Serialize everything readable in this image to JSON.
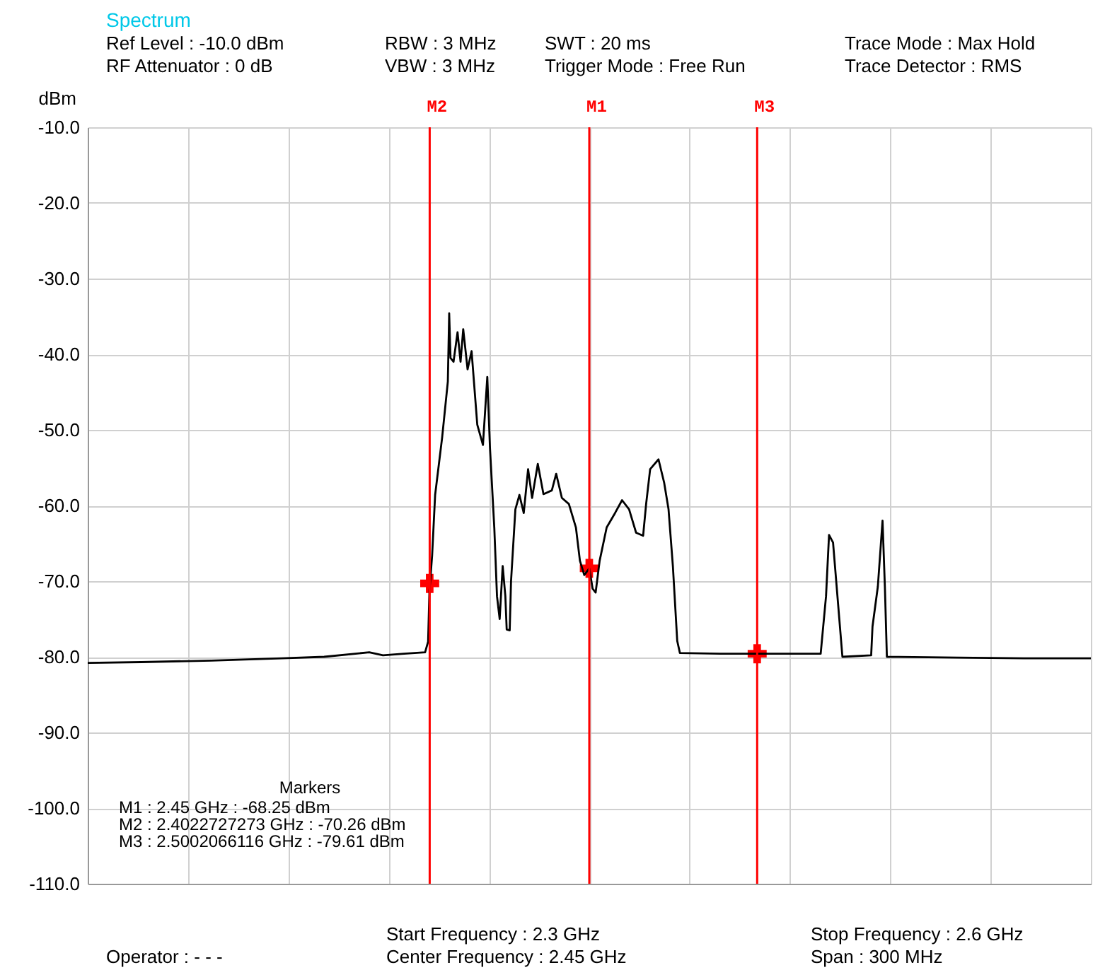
{
  "chart_data": {
    "type": "line",
    "title": "Spectrum",
    "ylabel": "dBm",
    "x": [
      2.3,
      2.316,
      2.337,
      2.3581,
      2.3707,
      2.3842,
      2.3883,
      2.3946,
      2.4009,
      2.4018,
      2.4022,
      2.403,
      2.4039,
      2.406,
      2.4077,
      2.4081,
      2.4085,
      2.4094,
      2.4106,
      2.4115,
      2.4123,
      2.4136,
      2.4148,
      2.4165,
      2.4182,
      2.4195,
      2.4203,
      2.4216,
      2.4224,
      2.4232,
      2.4241,
      2.4249,
      2.4253,
      2.4262,
      2.4266,
      2.4279,
      2.4291,
      2.4304,
      2.4317,
      2.4329,
      2.4346,
      2.4363,
      2.4388,
      2.4401,
      2.4418,
      2.4439,
      2.446,
      2.4472,
      2.4485,
      2.45,
      2.451,
      2.4519,
      2.4531,
      2.4552,
      2.4577,
      2.4598,
      2.4619,
      2.464,
      2.4661,
      2.467,
      2.4682,
      2.4707,
      2.4724,
      2.4737,
      2.475,
      2.4763,
      2.4771,
      2.49,
      2.5002,
      2.515,
      2.5192,
      2.5208,
      2.5217,
      2.5229,
      2.5257,
      2.5343,
      2.5347,
      2.5363,
      2.5377,
      2.5384,
      2.539,
      2.56,
      2.58,
      2.6
    ],
    "series": [
      {
        "color": "#000000",
        "values": [
          -80.8,
          -80.7,
          -80.5,
          -80.2,
          -80.0,
          -79.4,
          -79.8,
          -79.6,
          -79.4,
          -78,
          -71.3,
          -66.6,
          -58.6,
          -51,
          -43.6,
          -34.6,
          -40.5,
          -41,
          -37.1,
          -41,
          -36.7,
          -42,
          -39.6,
          -49.3,
          -52,
          -43,
          -52.4,
          -63,
          -72,
          -75,
          -68,
          -72,
          -76.4,
          -76.5,
          -70,
          -60.5,
          -58.6,
          -61,
          -55.2,
          -59,
          -54.5,
          -58.5,
          -58,
          -55.8,
          -59,
          -59.8,
          -62.9,
          -67.3,
          -69.2,
          -68.3,
          -71,
          -71.5,
          -67.3,
          -62.9,
          -61,
          -59.3,
          -60.5,
          -63.6,
          -64,
          -59.8,
          -55.2,
          -53.9,
          -57,
          -60.5,
          -68,
          -77.9,
          -79.5,
          -79.6,
          -79.6,
          -79.6,
          -79.6,
          -72,
          -63.9,
          -64.9,
          -80,
          -79.8,
          -76,
          -70.7,
          -62,
          -70.7,
          -80,
          -80.1,
          -80.2,
          -80.2
        ]
      },
      {
        "type": "scatter",
        "marker": "cross",
        "color": "#ff0000",
        "x": [
          2.45,
          2.4022727273,
          2.5002066116
        ],
        "values": [
          -68.3,
          -70.3,
          -79.6
        ]
      }
    ],
    "xlim": [
      2.3,
      2.6
    ],
    "xticks": [
      {
        "value": 2.3,
        "label": null
      },
      {
        "value": 2.33,
        "label": null
      },
      {
        "value": 2.36,
        "label": null
      },
      {
        "value": 2.39,
        "label": null
      },
      {
        "value": 2.42,
        "label": null
      },
      {
        "value": 2.45,
        "label": null
      },
      {
        "value": 2.48,
        "label": null
      },
      {
        "value": 2.51,
        "label": null
      },
      {
        "value": 2.54,
        "label": null
      },
      {
        "value": 2.57,
        "label": null
      },
      {
        "value": 2.6,
        "label": null
      }
    ],
    "ylim": [
      -110,
      -10
    ],
    "yticks": [
      {
        "value": -10,
        "label": "-10.0"
      },
      {
        "value": -20,
        "label": "-20.0"
      },
      {
        "value": -30,
        "label": "-30.0"
      },
      {
        "value": -40,
        "label": "-40.0"
      },
      {
        "value": -50,
        "label": "-50.0"
      },
      {
        "value": -60,
        "label": "-60.0"
      },
      {
        "value": -70,
        "label": "-70.0"
      },
      {
        "value": -80,
        "label": "-80.0"
      },
      {
        "value": -90,
        "label": "-90.0"
      },
      {
        "value": -100,
        "label": "-100.0"
      },
      {
        "value": -110,
        "label": "-110.0"
      }
    ],
    "tick_labels": "y",
    "grid": true,
    "marker": "none",
    "line_style": "solid",
    "ref_lines": [
      {
        "axis": "x",
        "value": 2.4022727273,
        "label": "M2",
        "color": "#ff0000"
      },
      {
        "axis": "x",
        "value": 2.45,
        "label": "M1",
        "color": "#ff0000"
      },
      {
        "axis": "x",
        "value": 2.5002066116,
        "label": "M3",
        "color": "#ff0000"
      }
    ],
    "annotations": [
      "Ref Level : -10.0 dBm",
      "RBW : 3 MHz",
      "SWT : 20 ms",
      "Trace Mode : Max Hold",
      "RF Attenuator : 0 dB",
      "VBW : 3 MHz",
      "Trigger Mode : Free Run",
      "Trace Detector : RMS",
      "Start Frequency : 2.3 GHz",
      "Center Frequency : 2.45 GHz",
      "Stop Frequency : 2.6 GHz",
      "Span : 300 MHz",
      "Operator : - - -",
      "Markers",
      "M1 : 2.45 GHz : -68.25 dBm",
      "M2 : 2.4022727273 GHz : -70.26 dBm",
      "M3 : 2.5002066116 GHz : -79.61 dBm"
    ]
  }
}
